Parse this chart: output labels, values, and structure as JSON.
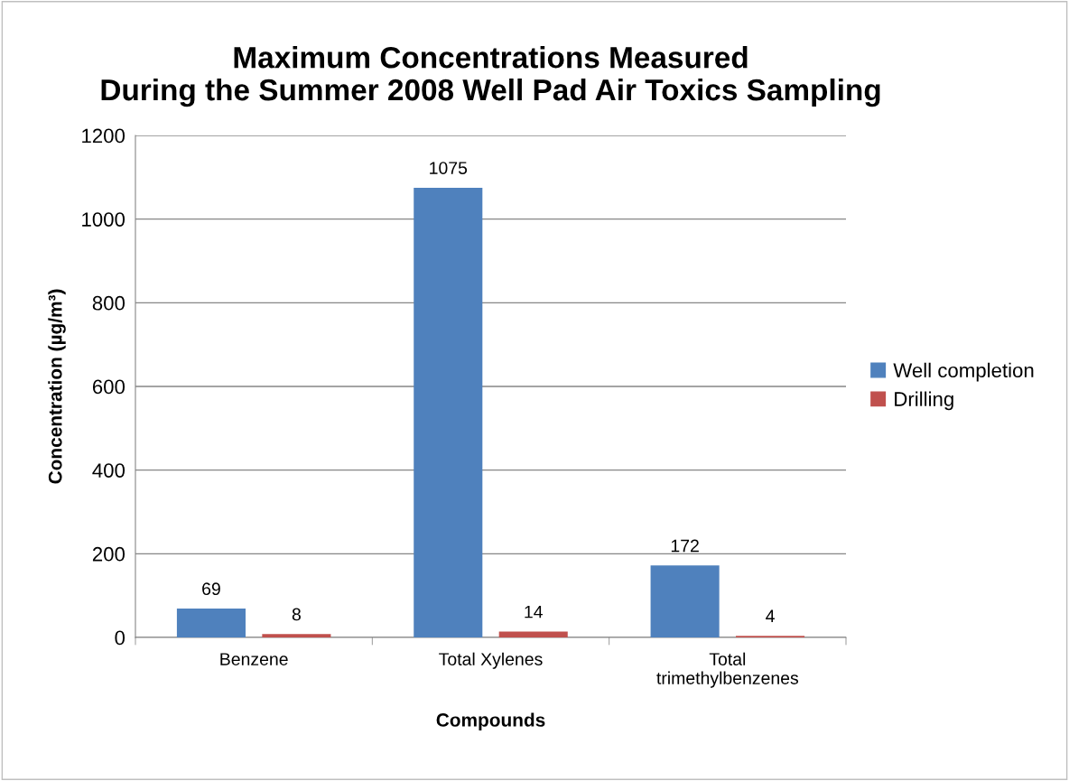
{
  "chart_data": {
    "type": "bar",
    "title": "Maximum Concentrations Measured\nDuring the Summer 2008 Well Pad Air Toxics Sampling",
    "xlabel": "Compounds",
    "ylabel": "Concentration (µg/m³)",
    "categories": [
      "Benzene",
      "Total Xylenes",
      "Total trimethylbenzenes"
    ],
    "series": [
      {
        "name": "Well completion",
        "color": "#4f81bd",
        "values": [
          69,
          1075,
          172
        ]
      },
      {
        "name": "Drilling",
        "color": "#c0504d",
        "values": [
          8,
          14,
          4
        ]
      }
    ],
    "ylim": [
      0,
      1200
    ],
    "yticks": [
      0,
      200,
      400,
      600,
      800,
      1000,
      1200
    ],
    "grid": "y",
    "legend": "right",
    "data_labels": true
  }
}
